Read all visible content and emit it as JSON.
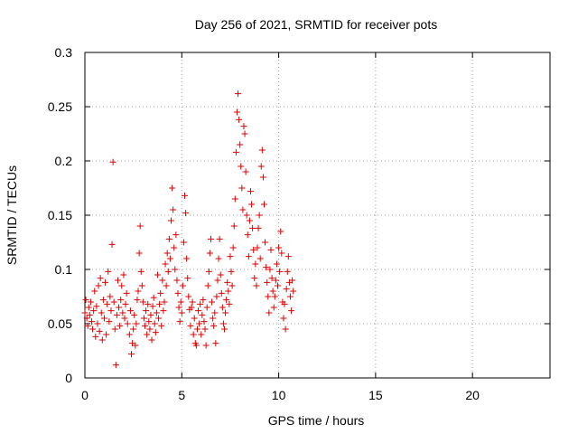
{
  "chart_data": {
    "type": "scatter",
    "title": "Day 256 of 2021, SRMTID for receiver pots",
    "xlabel": "GPS time / hours",
    "ylabel": "SRMTID / TECUs",
    "xlim": [
      0,
      24
    ],
    "ylim": [
      0,
      0.3
    ],
    "xticks": [
      0,
      5,
      10,
      15,
      20
    ],
    "xtick_labels": [
      "0",
      "5",
      "10",
      "15",
      "20"
    ],
    "yticks": [
      0,
      0.05,
      0.1,
      0.15,
      0.2,
      0.25,
      0.3
    ],
    "ytick_labels": [
      "0",
      "0.05",
      "0.1",
      "0.15",
      "0.2",
      "0.25",
      "0.3"
    ],
    "grid": true,
    "marker": "+",
    "marker_color": "#e00000",
    "series": [
      {
        "name": "",
        "points": [
          [
            0.0,
            0.06
          ],
          [
            0.05,
            0.072
          ],
          [
            0.1,
            0.055
          ],
          [
            0.15,
            0.048
          ],
          [
            0.2,
            0.065
          ],
          [
            0.25,
            0.058
          ],
          [
            0.3,
            0.07
          ],
          [
            0.35,
            0.052
          ],
          [
            0.4,
            0.045
          ],
          [
            0.45,
            0.062
          ],
          [
            0.5,
            0.08
          ],
          [
            0.55,
            0.038
          ],
          [
            0.6,
            0.066
          ],
          [
            0.65,
            0.05
          ],
          [
            0.7,
            0.085
          ],
          [
            0.75,
            0.043
          ],
          [
            0.8,
            0.092
          ],
          [
            0.85,
            0.06
          ],
          [
            0.9,
            0.035
          ],
          [
            0.95,
            0.072
          ],
          [
            1.0,
            0.055
          ],
          [
            1.05,
            0.088
          ],
          [
            1.1,
            0.04
          ],
          [
            1.15,
            0.068
          ],
          [
            1.2,
            0.098
          ],
          [
            1.25,
            0.052
          ],
          [
            1.3,
            0.075
          ],
          [
            1.35,
            0.062
          ],
          [
            1.4,
            0.123
          ],
          [
            1.45,
            0.199
          ],
          [
            1.5,
            0.07
          ],
          [
            1.55,
            0.045
          ],
          [
            1.6,
            0.012
          ],
          [
            1.65,
            0.058
          ],
          [
            1.7,
            0.09
          ],
          [
            1.75,
            0.065
          ],
          [
            1.8,
            0.048
          ],
          [
            1.85,
            0.072
          ],
          [
            1.9,
            0.085
          ],
          [
            1.95,
            0.06
          ],
          [
            2.0,
            0.095
          ],
          [
            2.05,
            0.055
          ],
          [
            2.1,
            0.068
          ],
          [
            2.15,
            0.078
          ],
          [
            2.2,
            0.05
          ],
          [
            2.3,
            0.04
          ],
          [
            2.35,
            0.062
          ],
          [
            2.4,
            0.022
          ],
          [
            2.45,
            0.032
          ],
          [
            2.5,
            0.045
          ],
          [
            2.55,
            0.058
          ],
          [
            2.6,
            0.03
          ],
          [
            2.65,
            0.05
          ],
          [
            2.7,
            0.072
          ],
          [
            2.75,
            0.08
          ],
          [
            2.8,
            0.115
          ],
          [
            2.85,
            0.14
          ],
          [
            2.9,
            0.098
          ],
          [
            2.95,
            0.085
          ],
          [
            3.0,
            0.07
          ],
          [
            3.05,
            0.055
          ],
          [
            3.1,
            0.048
          ],
          [
            3.15,
            0.062
          ],
          [
            3.2,
            0.04
          ],
          [
            3.25,
            0.068
          ],
          [
            3.3,
            0.052
          ],
          [
            3.35,
            0.045
          ],
          [
            3.4,
            0.058
          ],
          [
            3.45,
            0.035
          ],
          [
            3.5,
            0.066
          ],
          [
            3.55,
            0.074
          ],
          [
            3.6,
            0.05
          ],
          [
            3.65,
            0.042
          ],
          [
            3.7,
            0.06
          ],
          [
            3.75,
            0.095
          ],
          [
            3.8,
            0.055
          ],
          [
            3.85,
            0.068
          ],
          [
            3.9,
            0.078
          ],
          [
            3.95,
            0.048
          ],
          [
            4.0,
            0.09
          ],
          [
            4.05,
            0.062
          ],
          [
            4.1,
            0.07
          ],
          [
            4.15,
            0.105
          ],
          [
            4.2,
            0.085
          ],
          [
            4.25,
            0.115
          ],
          [
            4.3,
            0.098
          ],
          [
            4.35,
            0.128
          ],
          [
            4.4,
            0.11
          ],
          [
            4.45,
            0.145
          ],
          [
            4.5,
            0.175
          ],
          [
            4.55,
            0.155
          ],
          [
            4.6,
            0.12
          ],
          [
            4.65,
            0.1
          ],
          [
            4.7,
            0.132
          ],
          [
            4.75,
            0.09
          ],
          [
            4.8,
            0.078
          ],
          [
            4.85,
            0.065
          ],
          [
            4.9,
            0.052
          ],
          [
            4.95,
            0.07
          ],
          [
            5.0,
            0.06
          ],
          [
            5.05,
            0.085
          ],
          [
            5.1,
            0.125
          ],
          [
            5.15,
            0.168
          ],
          [
            5.2,
            0.152
          ],
          [
            5.25,
            0.11
          ],
          [
            5.3,
            0.092
          ],
          [
            5.35,
            0.075
          ],
          [
            5.4,
            0.063
          ],
          [
            5.45,
            0.048
          ],
          [
            5.5,
            0.065
          ],
          [
            5.55,
            0.07
          ],
          [
            5.6,
            0.04
          ],
          [
            5.65,
            0.055
          ],
          [
            5.7,
            0.032
          ],
          [
            5.75,
            0.03
          ],
          [
            5.8,
            0.045
          ],
          [
            5.85,
            0.062
          ],
          [
            5.9,
            0.05
          ],
          [
            5.95,
            0.068
          ],
          [
            6.0,
            0.04
          ],
          [
            6.05,
            0.058
          ],
          [
            6.1,
            0.072
          ],
          [
            6.15,
            0.052
          ],
          [
            6.2,
            0.045
          ],
          [
            6.25,
            0.03
          ],
          [
            6.3,
            0.065
          ],
          [
            6.35,
            0.085
          ],
          [
            6.4,
            0.098
          ],
          [
            6.45,
            0.115
          ],
          [
            6.5,
            0.128
          ],
          [
            6.55,
            0.07
          ],
          [
            6.6,
            0.055
          ],
          [
            6.65,
            0.048
          ],
          [
            6.7,
            0.06
          ],
          [
            6.75,
            0.032
          ],
          [
            6.8,
            0.075
          ],
          [
            6.85,
            0.09
          ],
          [
            6.9,
            0.11
          ],
          [
            6.95,
            0.128
          ],
          [
            7.0,
            0.095
          ],
          [
            7.05,
            0.078
          ],
          [
            7.1,
            0.065
          ],
          [
            7.15,
            0.05
          ],
          [
            7.2,
            0.045
          ],
          [
            7.25,
            0.06
          ],
          [
            7.3,
            0.072
          ],
          [
            7.35,
            0.088
          ],
          [
            7.4,
            0.08
          ],
          [
            7.45,
            0.068
          ],
          [
            7.5,
            0.112
          ],
          [
            7.55,
            0.098
          ],
          [
            7.6,
            0.085
          ],
          [
            7.65,
            0.12
          ],
          [
            7.7,
            0.14
          ],
          [
            7.75,
            0.165
          ],
          [
            7.8,
            0.208
          ],
          [
            7.85,
            0.245
          ],
          [
            7.9,
            0.262
          ],
          [
            7.95,
            0.238
          ],
          [
            8.0,
            0.215
          ],
          [
            8.05,
            0.195
          ],
          [
            8.1,
            0.175
          ],
          [
            8.15,
            0.155
          ],
          [
            8.2,
            0.232
          ],
          [
            8.25,
            0.225
          ],
          [
            8.3,
            0.19
          ],
          [
            8.35,
            0.15
          ],
          [
            8.4,
            0.132
          ],
          [
            8.45,
            0.112
          ],
          [
            8.5,
            0.145
          ],
          [
            8.55,
            0.172
          ],
          [
            8.6,
            0.16
          ],
          [
            8.65,
            0.138
          ],
          [
            8.7,
            0.118
          ],
          [
            8.75,
            0.092
          ],
          [
            8.8,
            0.105
          ],
          [
            8.85,
            0.085
          ],
          [
            8.9,
            0.12
          ],
          [
            8.95,
            0.138
          ],
          [
            9.0,
            0.15
          ],
          [
            9.05,
            0.11
          ],
          [
            9.1,
            0.195
          ],
          [
            9.15,
            0.21
          ],
          [
            9.2,
            0.185
          ],
          [
            9.25,
            0.16
          ],
          [
            9.3,
            0.125
          ],
          [
            9.35,
            0.102
          ],
          [
            9.4,
            0.088
          ],
          [
            9.45,
            0.075
          ],
          [
            9.5,
            0.06
          ],
          [
            9.55,
            0.1
          ],
          [
            9.6,
            0.118
          ],
          [
            9.65,
            0.092
          ],
          [
            9.7,
            0.08
          ],
          [
            9.75,
            0.065
          ],
          [
            9.8,
            0.075
          ],
          [
            9.85,
            0.09
          ],
          [
            9.9,
            0.105
          ],
          [
            9.95,
            0.085
          ],
          [
            10.0,
            0.12
          ],
          [
            10.05,
            0.098
          ],
          [
            10.1,
            0.135
          ],
          [
            10.15,
            0.115
          ],
          [
            10.2,
            0.07
          ],
          [
            10.25,
            0.055
          ],
          [
            10.3,
            0.068
          ],
          [
            10.35,
            0.045
          ],
          [
            10.4,
            0.082
          ],
          [
            10.45,
            0.098
          ],
          [
            10.5,
            0.112
          ],
          [
            10.55,
            0.088
          ],
          [
            10.6,
            0.075
          ],
          [
            10.65,
            0.062
          ],
          [
            10.7,
            0.09
          ],
          [
            10.75,
            0.08
          ]
        ]
      }
    ]
  }
}
